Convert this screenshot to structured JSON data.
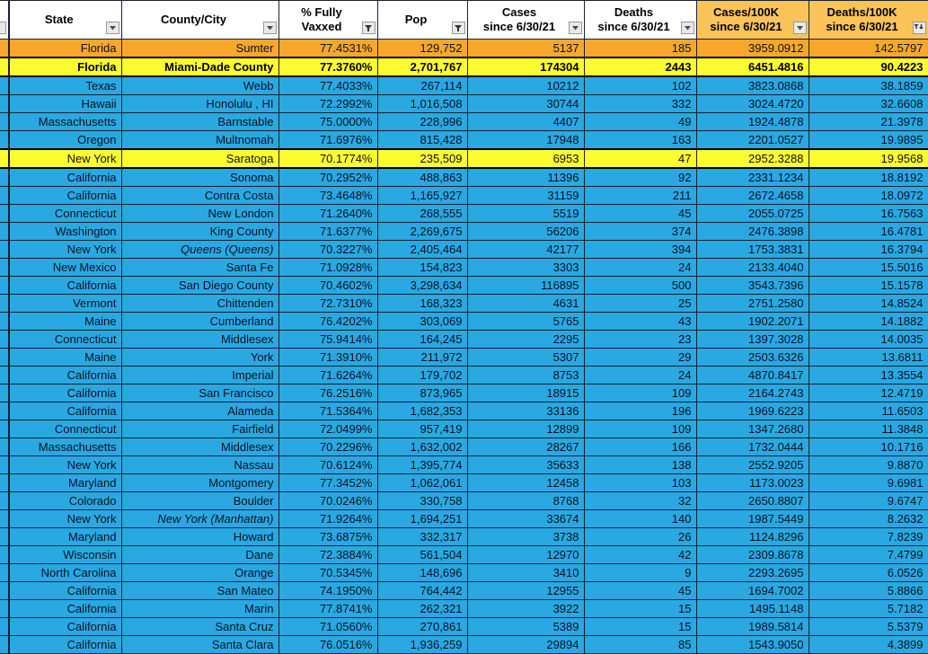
{
  "colors": {
    "row_blue": "#29a8e2",
    "row_orange": "#f7a82c",
    "row_yellow": "#fcfc33",
    "header_orange": "#fbc45a"
  },
  "table": {
    "columns": [
      {
        "key": "state",
        "label": "State",
        "icon": "dropdown",
        "header_bg": "white"
      },
      {
        "key": "county",
        "label": "County/City",
        "icon": "dropdown",
        "header_bg": "white"
      },
      {
        "key": "vaxxed",
        "label": "% Fully\nVaxxed",
        "icon": "funnel",
        "header_bg": "white"
      },
      {
        "key": "pop",
        "label": "Pop",
        "icon": "funnel",
        "header_bg": "white"
      },
      {
        "key": "cases",
        "label": "Cases\nsince 6/30/21",
        "icon": "dropdown",
        "header_bg": "white"
      },
      {
        "key": "deaths",
        "label": "Deaths\nsince 6/30/21",
        "icon": "dropdown",
        "header_bg": "white"
      },
      {
        "key": "cases100k",
        "label": "Cases/100K\nsince 6/30/21",
        "icon": "dropdown",
        "header_bg": "orange"
      },
      {
        "key": "deaths100k",
        "label": "Deaths/100K\nsince 6/30/21",
        "icon": "sort-desc",
        "header_bg": "orange"
      }
    ],
    "rows": [
      {
        "state": "Florida",
        "county": "Sumter",
        "vaxxed": "77.4531%",
        "pop": "129,752",
        "cases": "5137",
        "deaths": "185",
        "cases100k": "3959.0912",
        "deaths100k": "142.5797",
        "highlight": "orange",
        "bold": false,
        "italic": false
      },
      {
        "state": "Florida",
        "county": "Miami-Dade County",
        "vaxxed": "77.3760%",
        "pop": "2,701,767",
        "cases": "174304",
        "deaths": "2443",
        "cases100k": "6451.4816",
        "deaths100k": "90.4223",
        "highlight": "yellow",
        "bold": true,
        "italic": false
      },
      {
        "state": "Texas",
        "county": "Webb",
        "vaxxed": "77.4033%",
        "pop": "267,114",
        "cases": "10212",
        "deaths": "102",
        "cases100k": "3823.0868",
        "deaths100k": "38.1859",
        "highlight": "blue",
        "bold": false,
        "italic": false
      },
      {
        "state": "Hawaii",
        "county": "Honolulu , HI",
        "vaxxed": "72.2992%",
        "pop": "1,016,508",
        "cases": "30744",
        "deaths": "332",
        "cases100k": "3024.4720",
        "deaths100k": "32.6608",
        "highlight": "blue",
        "bold": false,
        "italic": false
      },
      {
        "state": "Massachusetts",
        "county": "Barnstable",
        "vaxxed": "75.0000%",
        "pop": "228,996",
        "cases": "4407",
        "deaths": "49",
        "cases100k": "1924.4878",
        "deaths100k": "21.3978",
        "highlight": "blue",
        "bold": false,
        "italic": false
      },
      {
        "state": "Oregon",
        "county": "Multnomah",
        "vaxxed": "71.6976%",
        "pop": "815,428",
        "cases": "17948",
        "deaths": "163",
        "cases100k": "2201.0527",
        "deaths100k": "19.9895",
        "highlight": "blue",
        "bold": false,
        "italic": false
      },
      {
        "state": "New York",
        "county": "Saratoga",
        "vaxxed": "70.1774%",
        "pop": "235,509",
        "cases": "6953",
        "deaths": "47",
        "cases100k": "2952.3288",
        "deaths100k": "19.9568",
        "highlight": "yellow",
        "bold": false,
        "italic": false
      },
      {
        "state": "California",
        "county": "Sonoma",
        "vaxxed": "70.2952%",
        "pop": "488,863",
        "cases": "11396",
        "deaths": "92",
        "cases100k": "2331.1234",
        "deaths100k": "18.8192",
        "highlight": "blue",
        "bold": false,
        "italic": false
      },
      {
        "state": "California",
        "county": "Contra Costa",
        "vaxxed": "73.4648%",
        "pop": "1,165,927",
        "cases": "31159",
        "deaths": "211",
        "cases100k": "2672.4658",
        "deaths100k": "18.0972",
        "highlight": "blue",
        "bold": false,
        "italic": false
      },
      {
        "state": "Connecticut",
        "county": "New London",
        "vaxxed": "71.2640%",
        "pop": "268,555",
        "cases": "5519",
        "deaths": "45",
        "cases100k": "2055.0725",
        "deaths100k": "16.7563",
        "highlight": "blue",
        "bold": false,
        "italic": false
      },
      {
        "state": "Washington",
        "county": "King County",
        "vaxxed": "71.6377%",
        "pop": "2,269,675",
        "cases": "56206",
        "deaths": "374",
        "cases100k": "2476.3898",
        "deaths100k": "16.4781",
        "highlight": "blue",
        "bold": false,
        "italic": false
      },
      {
        "state": "New York",
        "county": "Queens  (Queens)",
        "vaxxed": "70.3227%",
        "pop": "2,405,464",
        "cases": "42177",
        "deaths": "394",
        "cases100k": "1753.3831",
        "deaths100k": "16.3794",
        "highlight": "blue",
        "bold": false,
        "italic": true
      },
      {
        "state": "New Mexico",
        "county": "Santa Fe",
        "vaxxed": "71.0928%",
        "pop": "154,823",
        "cases": "3303",
        "deaths": "24",
        "cases100k": "2133.4040",
        "deaths100k": "15.5016",
        "highlight": "blue",
        "bold": false,
        "italic": false
      },
      {
        "state": "California",
        "county": "San Diego County",
        "vaxxed": "70.4602%",
        "pop": "3,298,634",
        "cases": "116895",
        "deaths": "500",
        "cases100k": "3543.7396",
        "deaths100k": "15.1578",
        "highlight": "blue",
        "bold": false,
        "italic": false
      },
      {
        "state": "Vermont",
        "county": "Chittenden",
        "vaxxed": "72.7310%",
        "pop": "168,323",
        "cases": "4631",
        "deaths": "25",
        "cases100k": "2751.2580",
        "deaths100k": "14.8524",
        "highlight": "blue",
        "bold": false,
        "italic": false
      },
      {
        "state": "Maine",
        "county": "Cumberland",
        "vaxxed": "76.4202%",
        "pop": "303,069",
        "cases": "5765",
        "deaths": "43",
        "cases100k": "1902.2071",
        "deaths100k": "14.1882",
        "highlight": "blue",
        "bold": false,
        "italic": false
      },
      {
        "state": "Connecticut",
        "county": "Middlesex",
        "vaxxed": "75.9414%",
        "pop": "164,245",
        "cases": "2295",
        "deaths": "23",
        "cases100k": "1397.3028",
        "deaths100k": "14.0035",
        "highlight": "blue",
        "bold": false,
        "italic": false
      },
      {
        "state": "Maine",
        "county": "York",
        "vaxxed": "71.3910%",
        "pop": "211,972",
        "cases": "5307",
        "deaths": "29",
        "cases100k": "2503.6326",
        "deaths100k": "13.6811",
        "highlight": "blue",
        "bold": false,
        "italic": false
      },
      {
        "state": "California",
        "county": "Imperial",
        "vaxxed": "71.6264%",
        "pop": "179,702",
        "cases": "8753",
        "deaths": "24",
        "cases100k": "4870.8417",
        "deaths100k": "13.3554",
        "highlight": "blue",
        "bold": false,
        "italic": false
      },
      {
        "state": "California",
        "county": "San Francisco",
        "vaxxed": "76.2516%",
        "pop": "873,965",
        "cases": "18915",
        "deaths": "109",
        "cases100k": "2164.2743",
        "deaths100k": "12.4719",
        "highlight": "blue",
        "bold": false,
        "italic": false
      },
      {
        "state": "California",
        "county": "Alameda",
        "vaxxed": "71.5364%",
        "pop": "1,682,353",
        "cases": "33136",
        "deaths": "196",
        "cases100k": "1969.6223",
        "deaths100k": "11.6503",
        "highlight": "blue",
        "bold": false,
        "italic": false
      },
      {
        "state": "Connecticut",
        "county": "Fairfield",
        "vaxxed": "72.0499%",
        "pop": "957,419",
        "cases": "12899",
        "deaths": "109",
        "cases100k": "1347.2680",
        "deaths100k": "11.3848",
        "highlight": "blue",
        "bold": false,
        "italic": false
      },
      {
        "state": "Massachusetts",
        "county": "Middlesex",
        "vaxxed": "70.2296%",
        "pop": "1,632,002",
        "cases": "28267",
        "deaths": "166",
        "cases100k": "1732.0444",
        "deaths100k": "10.1716",
        "highlight": "blue",
        "bold": false,
        "italic": false
      },
      {
        "state": "New York",
        "county": "Nassau",
        "vaxxed": "70.6124%",
        "pop": "1,395,774",
        "cases": "35633",
        "deaths": "138",
        "cases100k": "2552.9205",
        "deaths100k": "9.8870",
        "highlight": "blue",
        "bold": false,
        "italic": false
      },
      {
        "state": "Maryland",
        "county": "Montgomery",
        "vaxxed": "77.3452%",
        "pop": "1,062,061",
        "cases": "12458",
        "deaths": "103",
        "cases100k": "1173.0023",
        "deaths100k": "9.6981",
        "highlight": "blue",
        "bold": false,
        "italic": false
      },
      {
        "state": "Colorado",
        "county": "Boulder",
        "vaxxed": "70.0246%",
        "pop": "330,758",
        "cases": "8768",
        "deaths": "32",
        "cases100k": "2650.8807",
        "deaths100k": "9.6747",
        "highlight": "blue",
        "bold": false,
        "italic": false
      },
      {
        "state": "New York",
        "county": "New York  (Manhattan)",
        "vaxxed": "71.9264%",
        "pop": "1,694,251",
        "cases": "33674",
        "deaths": "140",
        "cases100k": "1987.5449",
        "deaths100k": "8.2632",
        "highlight": "blue",
        "bold": false,
        "italic": true
      },
      {
        "state": "Maryland",
        "county": "Howard",
        "vaxxed": "73.6875%",
        "pop": "332,317",
        "cases": "3738",
        "deaths": "26",
        "cases100k": "1124.8296",
        "deaths100k": "7.8239",
        "highlight": "blue",
        "bold": false,
        "italic": false
      },
      {
        "state": "Wisconsin",
        "county": "Dane",
        "vaxxed": "72.3884%",
        "pop": "561,504",
        "cases": "12970",
        "deaths": "42",
        "cases100k": "2309.8678",
        "deaths100k": "7.4799",
        "highlight": "blue",
        "bold": false,
        "italic": false
      },
      {
        "state": "North Carolina",
        "county": "Orange",
        "vaxxed": "70.5345%",
        "pop": "148,696",
        "cases": "3410",
        "deaths": "9",
        "cases100k": "2293.2695",
        "deaths100k": "6.0526",
        "highlight": "blue",
        "bold": false,
        "italic": false
      },
      {
        "state": "California",
        "county": "San Mateo",
        "vaxxed": "74.1950%",
        "pop": "764,442",
        "cases": "12955",
        "deaths": "45",
        "cases100k": "1694.7002",
        "deaths100k": "5.8866",
        "highlight": "blue",
        "bold": false,
        "italic": false
      },
      {
        "state": "California",
        "county": "Marin",
        "vaxxed": "77.8741%",
        "pop": "262,321",
        "cases": "3922",
        "deaths": "15",
        "cases100k": "1495.1148",
        "deaths100k": "5.7182",
        "highlight": "blue",
        "bold": false,
        "italic": false
      },
      {
        "state": "California",
        "county": "Santa Cruz",
        "vaxxed": "71.0560%",
        "pop": "270,861",
        "cases": "5389",
        "deaths": "15",
        "cases100k": "1989.5814",
        "deaths100k": "5.5379",
        "highlight": "blue",
        "bold": false,
        "italic": false
      },
      {
        "state": "California",
        "county": "Santa Clara",
        "vaxxed": "76.0516%",
        "pop": "1,936,259",
        "cases": "29894",
        "deaths": "85",
        "cases100k": "1543.9050",
        "deaths100k": "4.3899",
        "highlight": "blue",
        "bold": false,
        "italic": false
      }
    ]
  }
}
